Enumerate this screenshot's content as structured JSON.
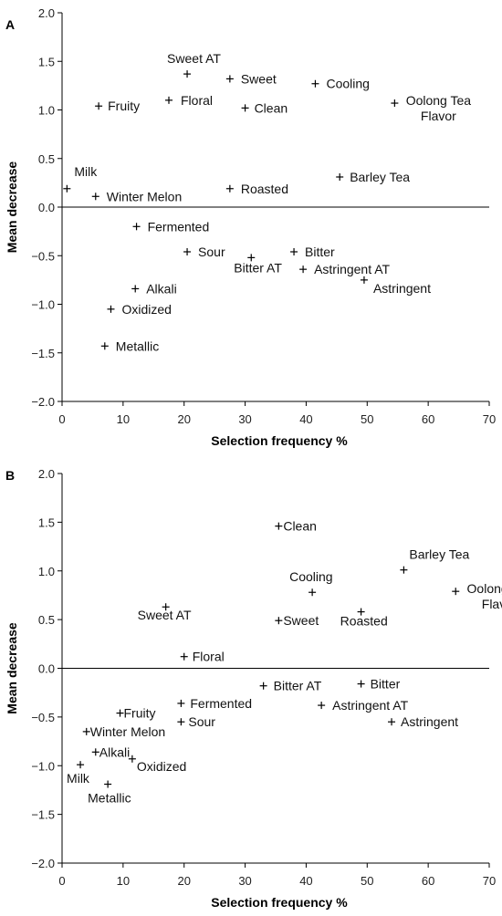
{
  "chart_data": [
    {
      "type": "scatter",
      "panel": "A",
      "xlabel": "Selection frequency %",
      "ylabel": "Mean decrease",
      "xlim": [
        0,
        70
      ],
      "ylim": [
        -2.0,
        2.0
      ],
      "xticks": [
        "0",
        "10",
        "20",
        "30",
        "40",
        "50",
        "60",
        "70"
      ],
      "yticks": [
        "2.0",
        "1.5",
        "1.0",
        "0.5",
        "0.0",
        "−0.5",
        "−1.0",
        "−1.5",
        "−2.0"
      ],
      "grid": false,
      "points": [
        {
          "label": "Sweet AT",
          "x": 20.5,
          "y": 1.37
        },
        {
          "label": "Sweet",
          "x": 27.5,
          "y": 1.32
        },
        {
          "label": "Cooling",
          "x": 41.5,
          "y": 1.27
        },
        {
          "label": "Fruity",
          "x": 6,
          "y": 1.04
        },
        {
          "label": "Floral",
          "x": 17.5,
          "y": 1.1
        },
        {
          "label": "Clean",
          "x": 30,
          "y": 1.02
        },
        {
          "label": "Oolong Tea Flavor",
          "x": 54.5,
          "y": 1.07
        },
        {
          "label": "Milk",
          "x": 0.8,
          "y": 0.19
        },
        {
          "label": "Winter Melon",
          "x": 5.5,
          "y": 0.11
        },
        {
          "label": "Roasted",
          "x": 27.5,
          "y": 0.19
        },
        {
          "label": "Barley Tea",
          "x": 45.5,
          "y": 0.31
        },
        {
          "label": "Fermented",
          "x": 12.2,
          "y": -0.2
        },
        {
          "label": "Sour",
          "x": 20.5,
          "y": -0.46
        },
        {
          "label": "Bitter AT",
          "x": 31,
          "y": -0.52
        },
        {
          "label": "Bitter",
          "x": 38,
          "y": -0.46
        },
        {
          "label": "Astringent AT",
          "x": 39.5,
          "y": -0.64
        },
        {
          "label": "Astringent",
          "x": 49.5,
          "y": -0.75
        },
        {
          "label": "Alkali",
          "x": 12,
          "y": -0.84
        },
        {
          "label": "Oxidized",
          "x": 8,
          "y": -1.05
        },
        {
          "label": "Metallic",
          "x": 7,
          "y": -1.43
        }
      ]
    },
    {
      "type": "scatter",
      "panel": "B",
      "xlabel": "Selection frequency %",
      "ylabel": "Mean decrease",
      "xlim": [
        0,
        70
      ],
      "ylim": [
        -2.0,
        2.0
      ],
      "xticks": [
        "0",
        "10",
        "20",
        "30",
        "40",
        "50",
        "60",
        "70"
      ],
      "yticks": [
        "2.0",
        "1.5",
        "1.0",
        "0.5",
        "0.0",
        "−0.5",
        "−1.0",
        "−1.5",
        "−2.0"
      ],
      "grid": false,
      "points": [
        {
          "label": "Clean",
          "x": 35.5,
          "y": 1.46
        },
        {
          "label": "Barley Tea",
          "x": 56,
          "y": 1.01
        },
        {
          "label": "Oolong Tea Flavor",
          "x": 64.5,
          "y": 0.79
        },
        {
          "label": "Cooling",
          "x": 41,
          "y": 0.78
        },
        {
          "label": "Sweet AT",
          "x": 17,
          "y": 0.63
        },
        {
          "label": "Roasted",
          "x": 49,
          "y": 0.58
        },
        {
          "label": "Sweet",
          "x": 35.5,
          "y": 0.49
        },
        {
          "label": "Floral",
          "x": 20,
          "y": 0.12
        },
        {
          "label": "Bitter AT",
          "x": 33,
          "y": -0.18
        },
        {
          "label": "Bitter",
          "x": 49,
          "y": -0.16
        },
        {
          "label": "Fermented",
          "x": 19.5,
          "y": -0.36
        },
        {
          "label": "Astringent AT",
          "x": 42.5,
          "y": -0.38
        },
        {
          "label": "Fruity",
          "x": 9.5,
          "y": -0.46
        },
        {
          "label": "Sour",
          "x": 19.5,
          "y": -0.55
        },
        {
          "label": "Astringent",
          "x": 54,
          "y": -0.55
        },
        {
          "label": "Winter Melon",
          "x": 4,
          "y": -0.65
        },
        {
          "label": "Alkali",
          "x": 5.5,
          "y": -0.86
        },
        {
          "label": "Oxidized",
          "x": 11.5,
          "y": -0.93
        },
        {
          "label": "Milk",
          "x": 3,
          "y": -0.99
        },
        {
          "label": "Metallic",
          "x": 7.5,
          "y": -1.19
        }
      ]
    }
  ]
}
